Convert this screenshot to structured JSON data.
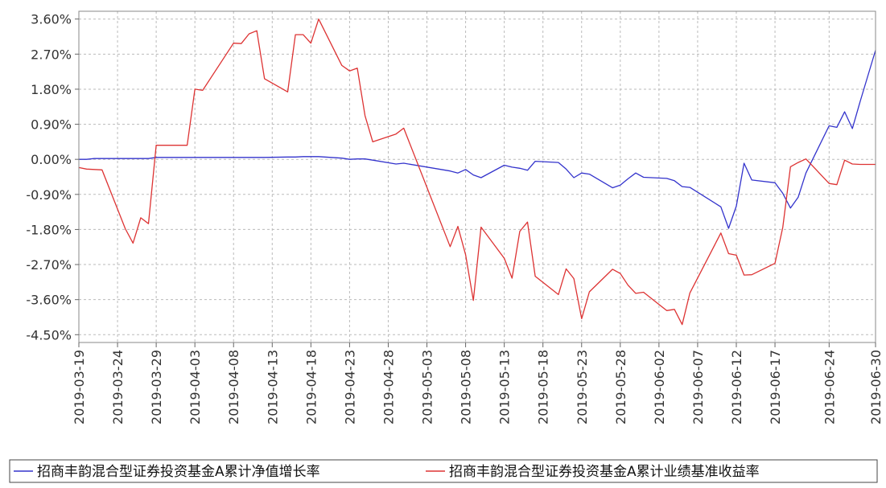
{
  "chart_data": {
    "type": "line",
    "title": "",
    "xlabel": "",
    "ylabel": "",
    "ylim": [
      -4.7,
      3.8
    ],
    "y_ticks": [
      "3.60%",
      "2.70%",
      "1.80%",
      "0.90%",
      "0.00%",
      "-0.90%",
      "-1.80%",
      "-2.70%",
      "-3.60%",
      "-4.50%"
    ],
    "x_ticks": [
      "2019-03-19",
      "2019-03-24",
      "2019-03-29",
      "2019-04-03",
      "2019-04-08",
      "2019-04-13",
      "2019-04-18",
      "2019-04-23",
      "2019-04-28",
      "2019-05-03",
      "2019-05-08",
      "2019-05-13",
      "2019-05-18",
      "2019-05-23",
      "2019-05-28",
      "2019-06-02",
      "2019-06-07",
      "2019-06-12",
      "2019-06-17",
      "2019-06-24",
      "2019-06-30"
    ],
    "x": [
      "2019-03-19",
      "2019-03-20",
      "2019-03-21",
      "2019-03-22",
      "2019-03-25",
      "2019-03-26",
      "2019-03-27",
      "2019-03-28",
      "2019-03-29",
      "2019-04-01",
      "2019-04-02",
      "2019-04-03",
      "2019-04-04",
      "2019-04-08",
      "2019-04-09",
      "2019-04-10",
      "2019-04-11",
      "2019-04-12",
      "2019-04-15",
      "2019-04-16",
      "2019-04-17",
      "2019-04-18",
      "2019-04-19",
      "2019-04-22",
      "2019-04-23",
      "2019-04-24",
      "2019-04-25",
      "2019-04-26",
      "2019-04-29",
      "2019-04-30",
      "2019-05-06",
      "2019-05-07",
      "2019-05-08",
      "2019-05-09",
      "2019-05-10",
      "2019-05-13",
      "2019-05-14",
      "2019-05-15",
      "2019-05-16",
      "2019-05-17",
      "2019-05-20",
      "2019-05-21",
      "2019-05-22",
      "2019-05-23",
      "2019-05-24",
      "2019-05-27",
      "2019-05-28",
      "2019-05-29",
      "2019-05-30",
      "2019-05-31",
      "2019-06-03",
      "2019-06-04",
      "2019-06-05",
      "2019-06-06",
      "2019-06-10",
      "2019-06-11",
      "2019-06-12",
      "2019-06-13",
      "2019-06-14",
      "2019-06-17",
      "2019-06-18",
      "2019-06-19",
      "2019-06-20",
      "2019-06-21",
      "2019-06-24",
      "2019-06-25",
      "2019-06-26",
      "2019-06-27",
      "2019-06-28",
      "2019-06-30"
    ],
    "series": [
      {
        "name": "招商丰韵混合型证券投资基金A累计净值增长率",
        "color": "#3333cc",
        "values": [
          0.0,
          0.0,
          0.02,
          0.02,
          0.02,
          0.02,
          0.02,
          0.02,
          0.05,
          0.05,
          0.05,
          0.05,
          0.05,
          0.05,
          0.05,
          0.05,
          0.05,
          0.05,
          0.06,
          0.06,
          0.07,
          0.07,
          0.07,
          0.03,
          0.0,
          0.01,
          0.01,
          -0.02,
          -0.12,
          -0.1,
          -0.3,
          -0.35,
          -0.26,
          -0.4,
          -0.47,
          -0.15,
          -0.2,
          -0.23,
          -0.28,
          -0.05,
          -0.08,
          -0.25,
          -0.47,
          -0.35,
          -0.38,
          -0.73,
          -0.66,
          -0.5,
          -0.35,
          -0.46,
          -0.49,
          -0.55,
          -0.7,
          -0.72,
          -1.22,
          -1.77,
          -1.2,
          -0.1,
          -0.53,
          -0.6,
          -0.87,
          -1.25,
          -0.97,
          -0.35,
          0.86,
          0.82,
          1.22,
          0.79,
          1.48,
          2.8
        ]
      },
      {
        "name": "招商丰韵混合型证券投资基金A累计业绩基准收益率",
        "color": "#dd3333",
        "values": [
          -0.21,
          -0.25,
          -0.26,
          -0.27,
          -1.78,
          -2.15,
          -1.5,
          -1.65,
          0.36,
          0.36,
          0.36,
          1.8,
          1.77,
          2.98,
          2.97,
          3.22,
          3.3,
          2.07,
          1.73,
          3.2,
          3.2,
          2.98,
          3.6,
          2.41,
          2.27,
          2.34,
          1.12,
          0.45,
          0.65,
          0.8,
          -2.24,
          -1.72,
          -2.45,
          -3.62,
          -1.74,
          -2.54,
          -3.05,
          -1.85,
          -1.61,
          -3.0,
          -3.47,
          -2.81,
          -3.06,
          -4.09,
          -3.4,
          -2.82,
          -2.93,
          -3.23,
          -3.44,
          -3.41,
          -3.88,
          -3.85,
          -4.24,
          -3.43,
          -1.89,
          -2.42,
          -2.46,
          -2.97,
          -2.96,
          -2.67,
          -1.75,
          -0.19,
          -0.08,
          0.01,
          -0.62,
          -0.65,
          -0.02,
          -0.12,
          -0.13,
          -0.13
        ]
      }
    ],
    "grid": true,
    "legend": "bottom"
  }
}
